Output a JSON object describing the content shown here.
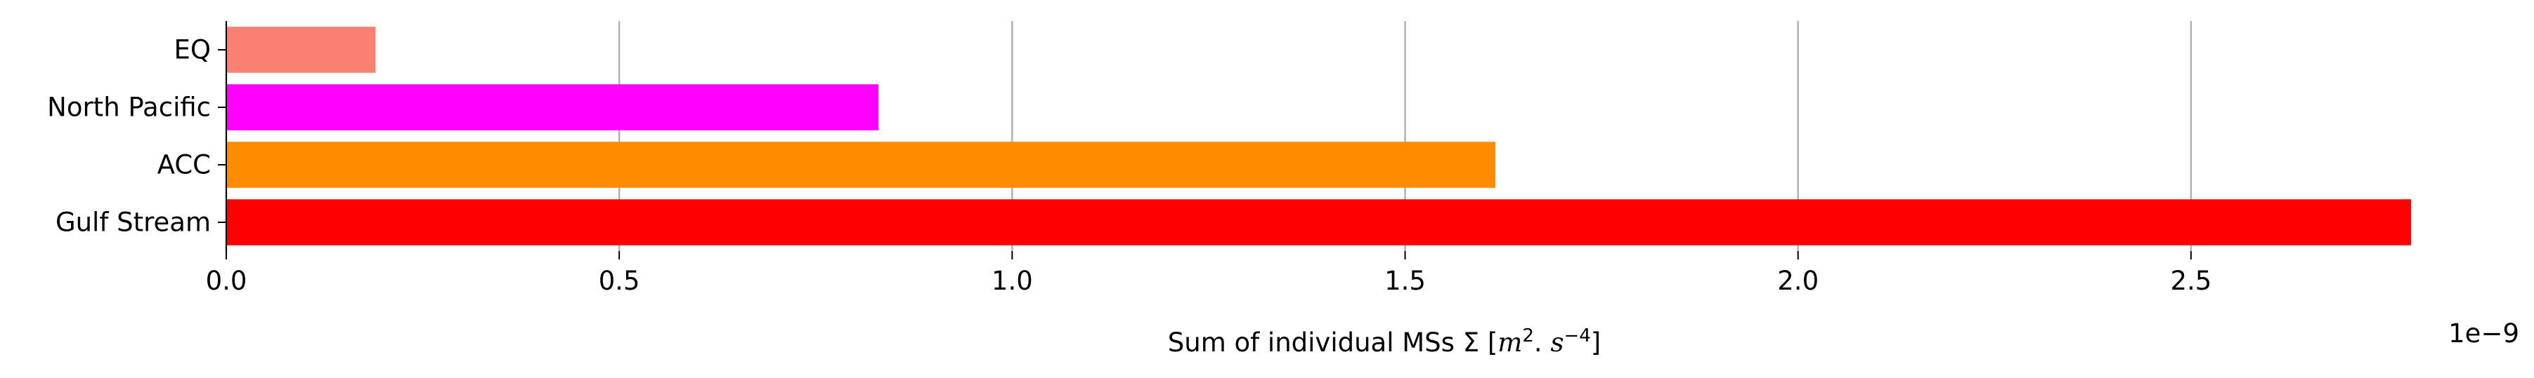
{
  "chart_data": {
    "type": "bar",
    "orientation": "horizontal",
    "categories": [
      "EQ",
      "North Pacific",
      "ACC",
      "Gulf Stream"
    ],
    "values": [
      0.19,
      0.83,
      1.615,
      2.78
    ],
    "colors": [
      "#fa8072",
      "#ff00ff",
      "#ff8c00",
      "#ff0000"
    ],
    "xlabel_prefix": "Sum of individual MSs Σ [",
    "xlabel_m": "m",
    "xlabel_m_exp": "2",
    "xlabel_sep": ". ",
    "xlabel_s": "s",
    "xlabel_s_exp": "−4",
    "xlabel_suffix": "]",
    "offset_text": "1e−9",
    "xticks": [
      0.0,
      0.5,
      1.0,
      1.5,
      2.0,
      2.5
    ],
    "xtick_labels": [
      "0.0",
      "0.5",
      "1.0",
      "1.5",
      "2.0",
      "2.5"
    ],
    "xlim": [
      0,
      2.78
    ],
    "grid": "x",
    "grid_color": "#b0b0b0",
    "axis_color": "#000000"
  }
}
